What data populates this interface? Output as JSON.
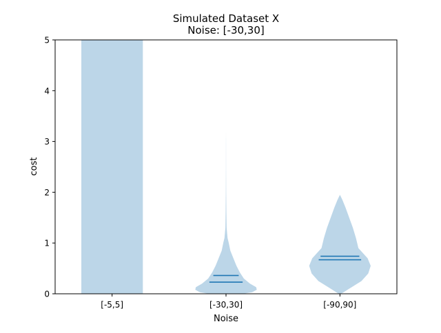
{
  "chart_data": {
    "type": "violin",
    "title": "Simulated Dataset X",
    "subtitle": "Noise: [-30,30]",
    "xlabel": "Noise",
    "ylabel": "cost",
    "categories": [
      "[-5,5]",
      "[-30,30]",
      "[-90,90]"
    ],
    "ylim": [
      0,
      5
    ],
    "yticks": [
      0,
      1,
      2,
      3,
      4,
      5
    ],
    "grid": false,
    "violin_color": "#bcd6e8",
    "line_color": "#1f77b4",
    "series": [
      {
        "category": "[-5,5]",
        "clipped_above_ylim": true,
        "profile": [
          [
            0,
            1
          ],
          [
            5,
            1
          ]
        ],
        "mean": null,
        "median": null
      },
      {
        "category": "[-30,30]",
        "clipped_above_ylim": false,
        "profile": [
          [
            0.0,
            0.55
          ],
          [
            0.03,
            0.85
          ],
          [
            0.08,
            1.0
          ],
          [
            0.13,
            0.98
          ],
          [
            0.2,
            0.78
          ],
          [
            0.3,
            0.58
          ],
          [
            0.42,
            0.45
          ],
          [
            0.55,
            0.34
          ],
          [
            0.7,
            0.24
          ],
          [
            0.85,
            0.14
          ],
          [
            1.0,
            0.09
          ],
          [
            1.1,
            0.05
          ],
          [
            1.3,
            0.02
          ],
          [
            1.6,
            0.012
          ],
          [
            2.0,
            0.006
          ],
          [
            2.5,
            0.003
          ],
          [
            3.0,
            0.002
          ],
          [
            3.2,
            0.0
          ]
        ],
        "mean": 0.36,
        "median": 0.23
      },
      {
        "category": "[-90,90]",
        "clipped_above_ylim": false,
        "profile": [
          [
            0.0,
            0.04
          ],
          [
            0.1,
            0.3
          ],
          [
            0.25,
            0.7
          ],
          [
            0.4,
            0.92
          ],
          [
            0.55,
            1.0
          ],
          [
            0.7,
            0.9
          ],
          [
            0.9,
            0.6
          ],
          [
            1.1,
            0.52
          ],
          [
            1.3,
            0.42
          ],
          [
            1.5,
            0.3
          ],
          [
            1.7,
            0.18
          ],
          [
            1.85,
            0.08
          ],
          [
            1.95,
            0.0
          ]
        ],
        "mean": 0.74,
        "median": 0.67
      }
    ]
  }
}
